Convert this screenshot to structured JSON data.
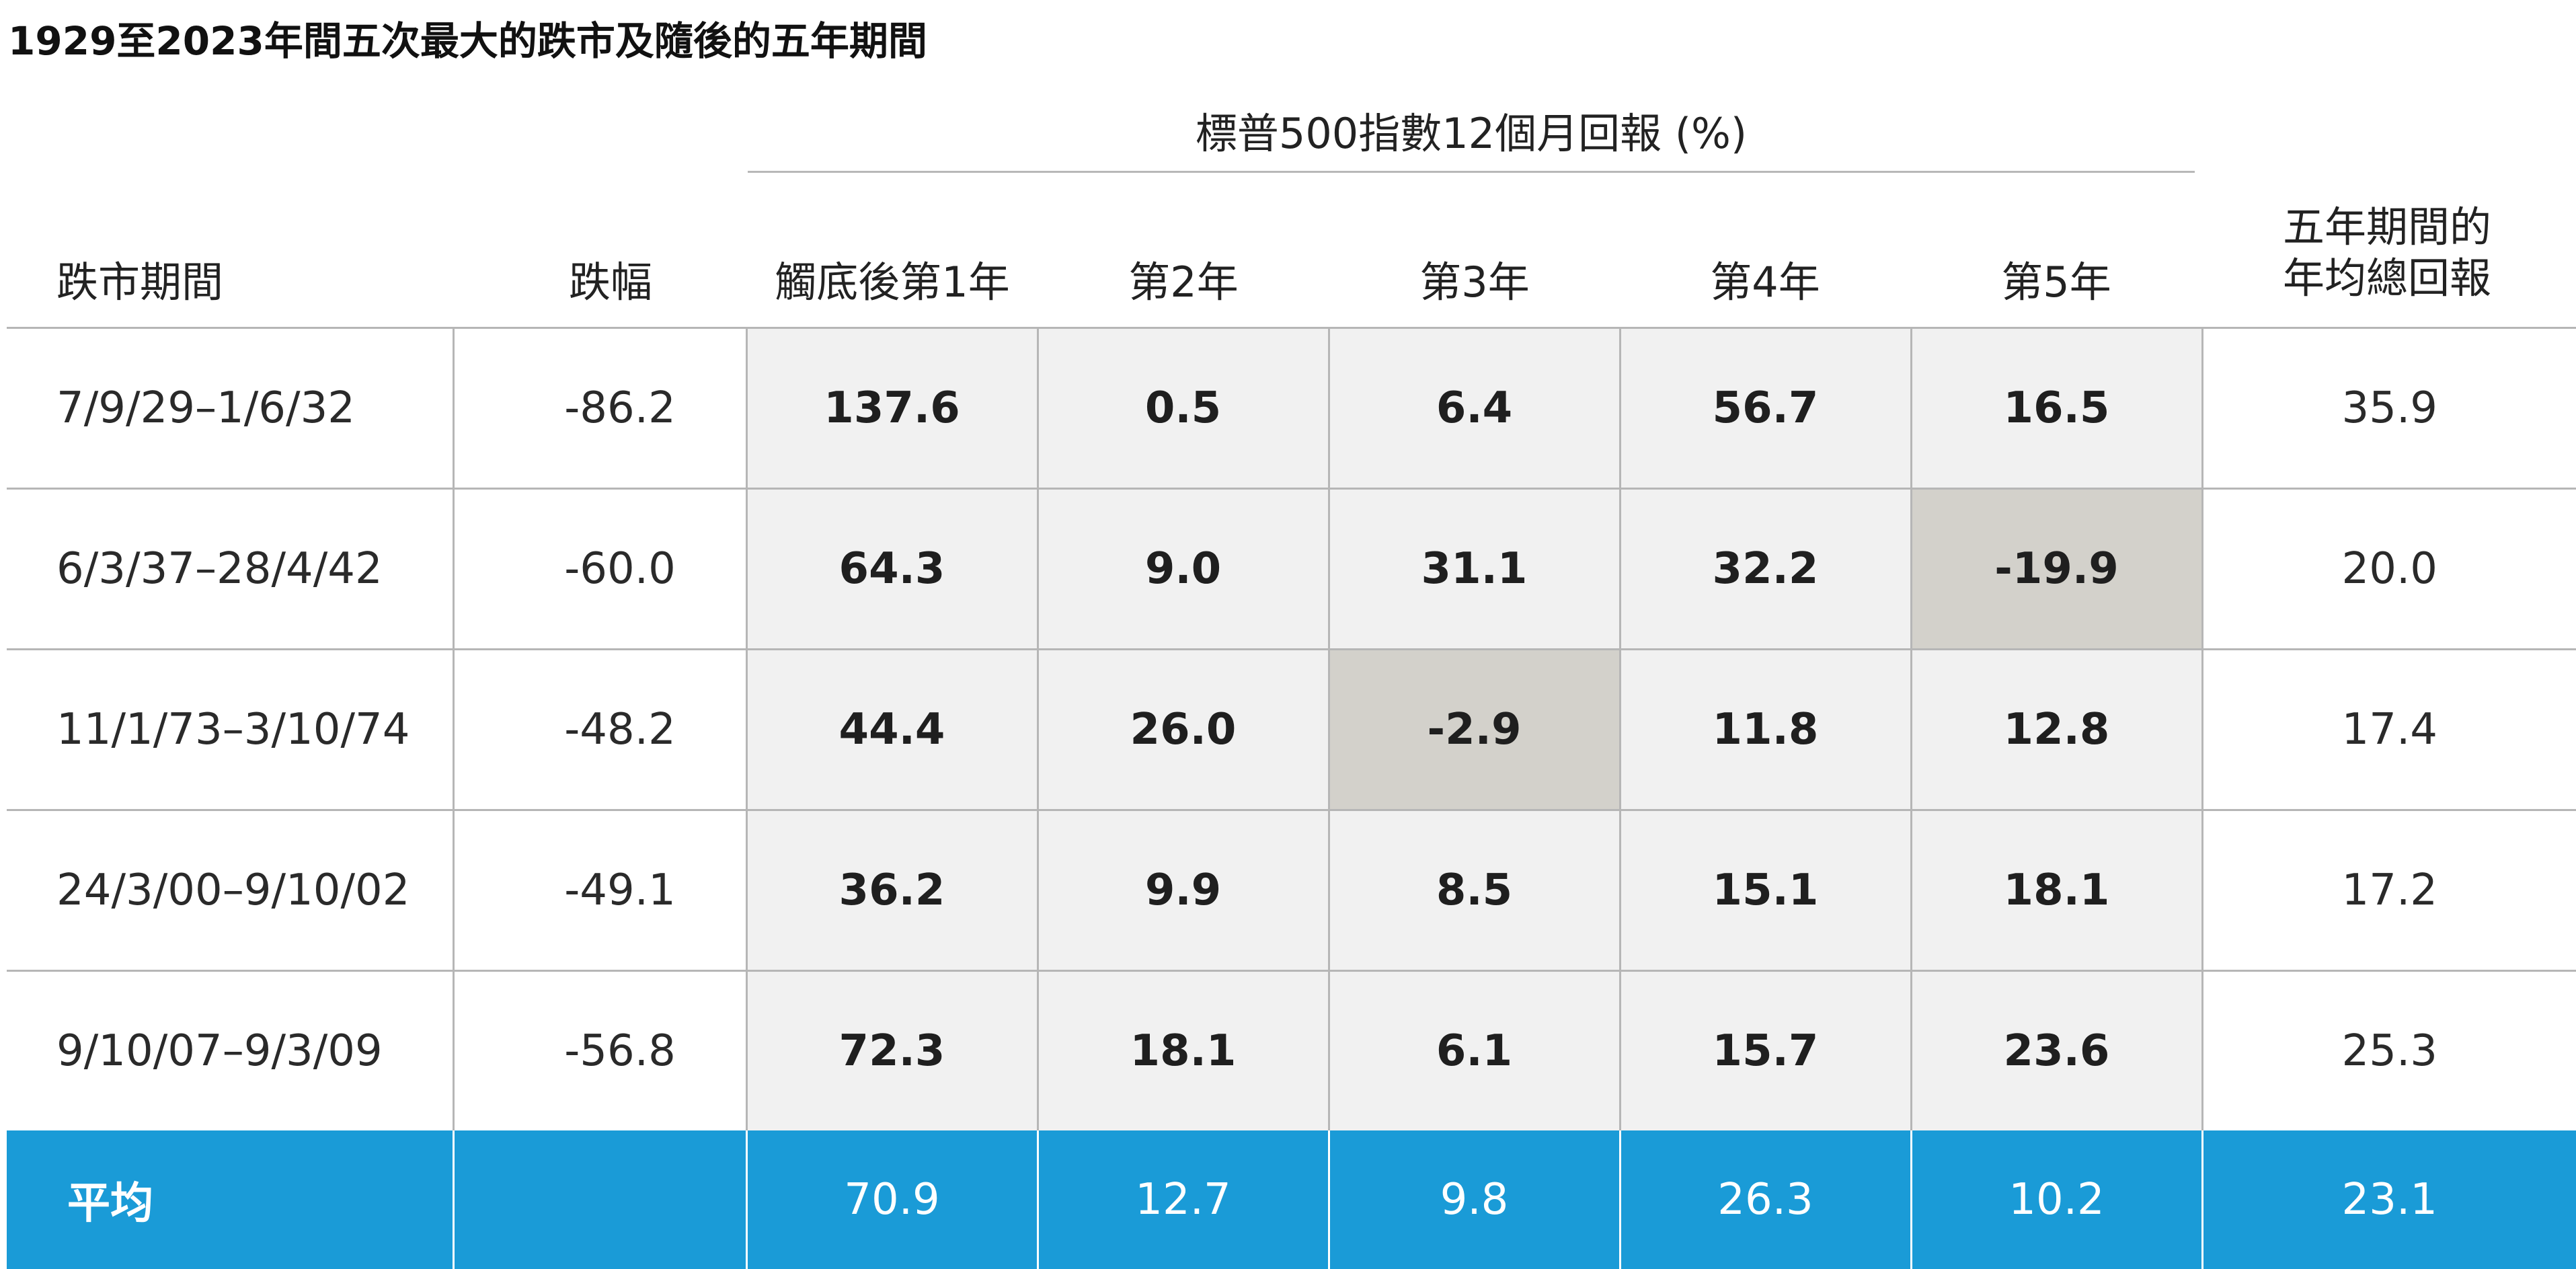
{
  "title": "1929至2023年間五次最大的跌市及隨後的五年期間",
  "chart_data": {
    "type": "table",
    "group_header": "標普500指數12個月回報 (%)",
    "columns": {
      "period": "跌市期間",
      "decline": "跌幅",
      "year1": "觸底後第1年",
      "year2": "第2年",
      "year3": "第3年",
      "year4": "第4年",
      "year5": "第5年",
      "avg5_line1": "五年期間的",
      "avg5_line2": "年均總回報"
    },
    "rows": [
      {
        "period": "7/9/29–1/6/32",
        "decline": "-86.2",
        "years": [
          "137.6",
          "0.5",
          "6.4",
          "56.7",
          "16.5"
        ],
        "avg5": "35.9"
      },
      {
        "period": "6/3/37–28/4/42",
        "decline": "-60.0",
        "years": [
          "64.3",
          "9.0",
          "31.1",
          "32.2",
          "-19.9"
        ],
        "avg5": "20.0"
      },
      {
        "period": "11/1/73–3/10/74",
        "decline": "-48.2",
        "years": [
          "44.4",
          "26.0",
          "-2.9",
          "11.8",
          "12.8"
        ],
        "avg5": "17.4"
      },
      {
        "period": "24/3/00–9/10/02",
        "decline": "-49.1",
        "years": [
          "36.2",
          "9.9",
          "8.5",
          "15.1",
          "18.1"
        ],
        "avg5": "17.2"
      },
      {
        "period": "9/10/07–9/3/09",
        "decline": "-56.8",
        "years": [
          "72.3",
          "18.1",
          "6.1",
          "15.7",
          "23.6"
        ],
        "avg5": "25.3"
      }
    ],
    "average": {
      "label": "平均",
      "decline": "",
      "years": [
        "70.9",
        "12.7",
        "9.8",
        "26.3",
        "10.2"
      ],
      "avg5": "23.1"
    },
    "colors": {
      "year_cell_bg": "#f1f1f1",
      "negative_cell_bg": "#d3d1cb",
      "average_row_bg": "#1a9bd7",
      "average_row_text": "#ffffff"
    }
  }
}
